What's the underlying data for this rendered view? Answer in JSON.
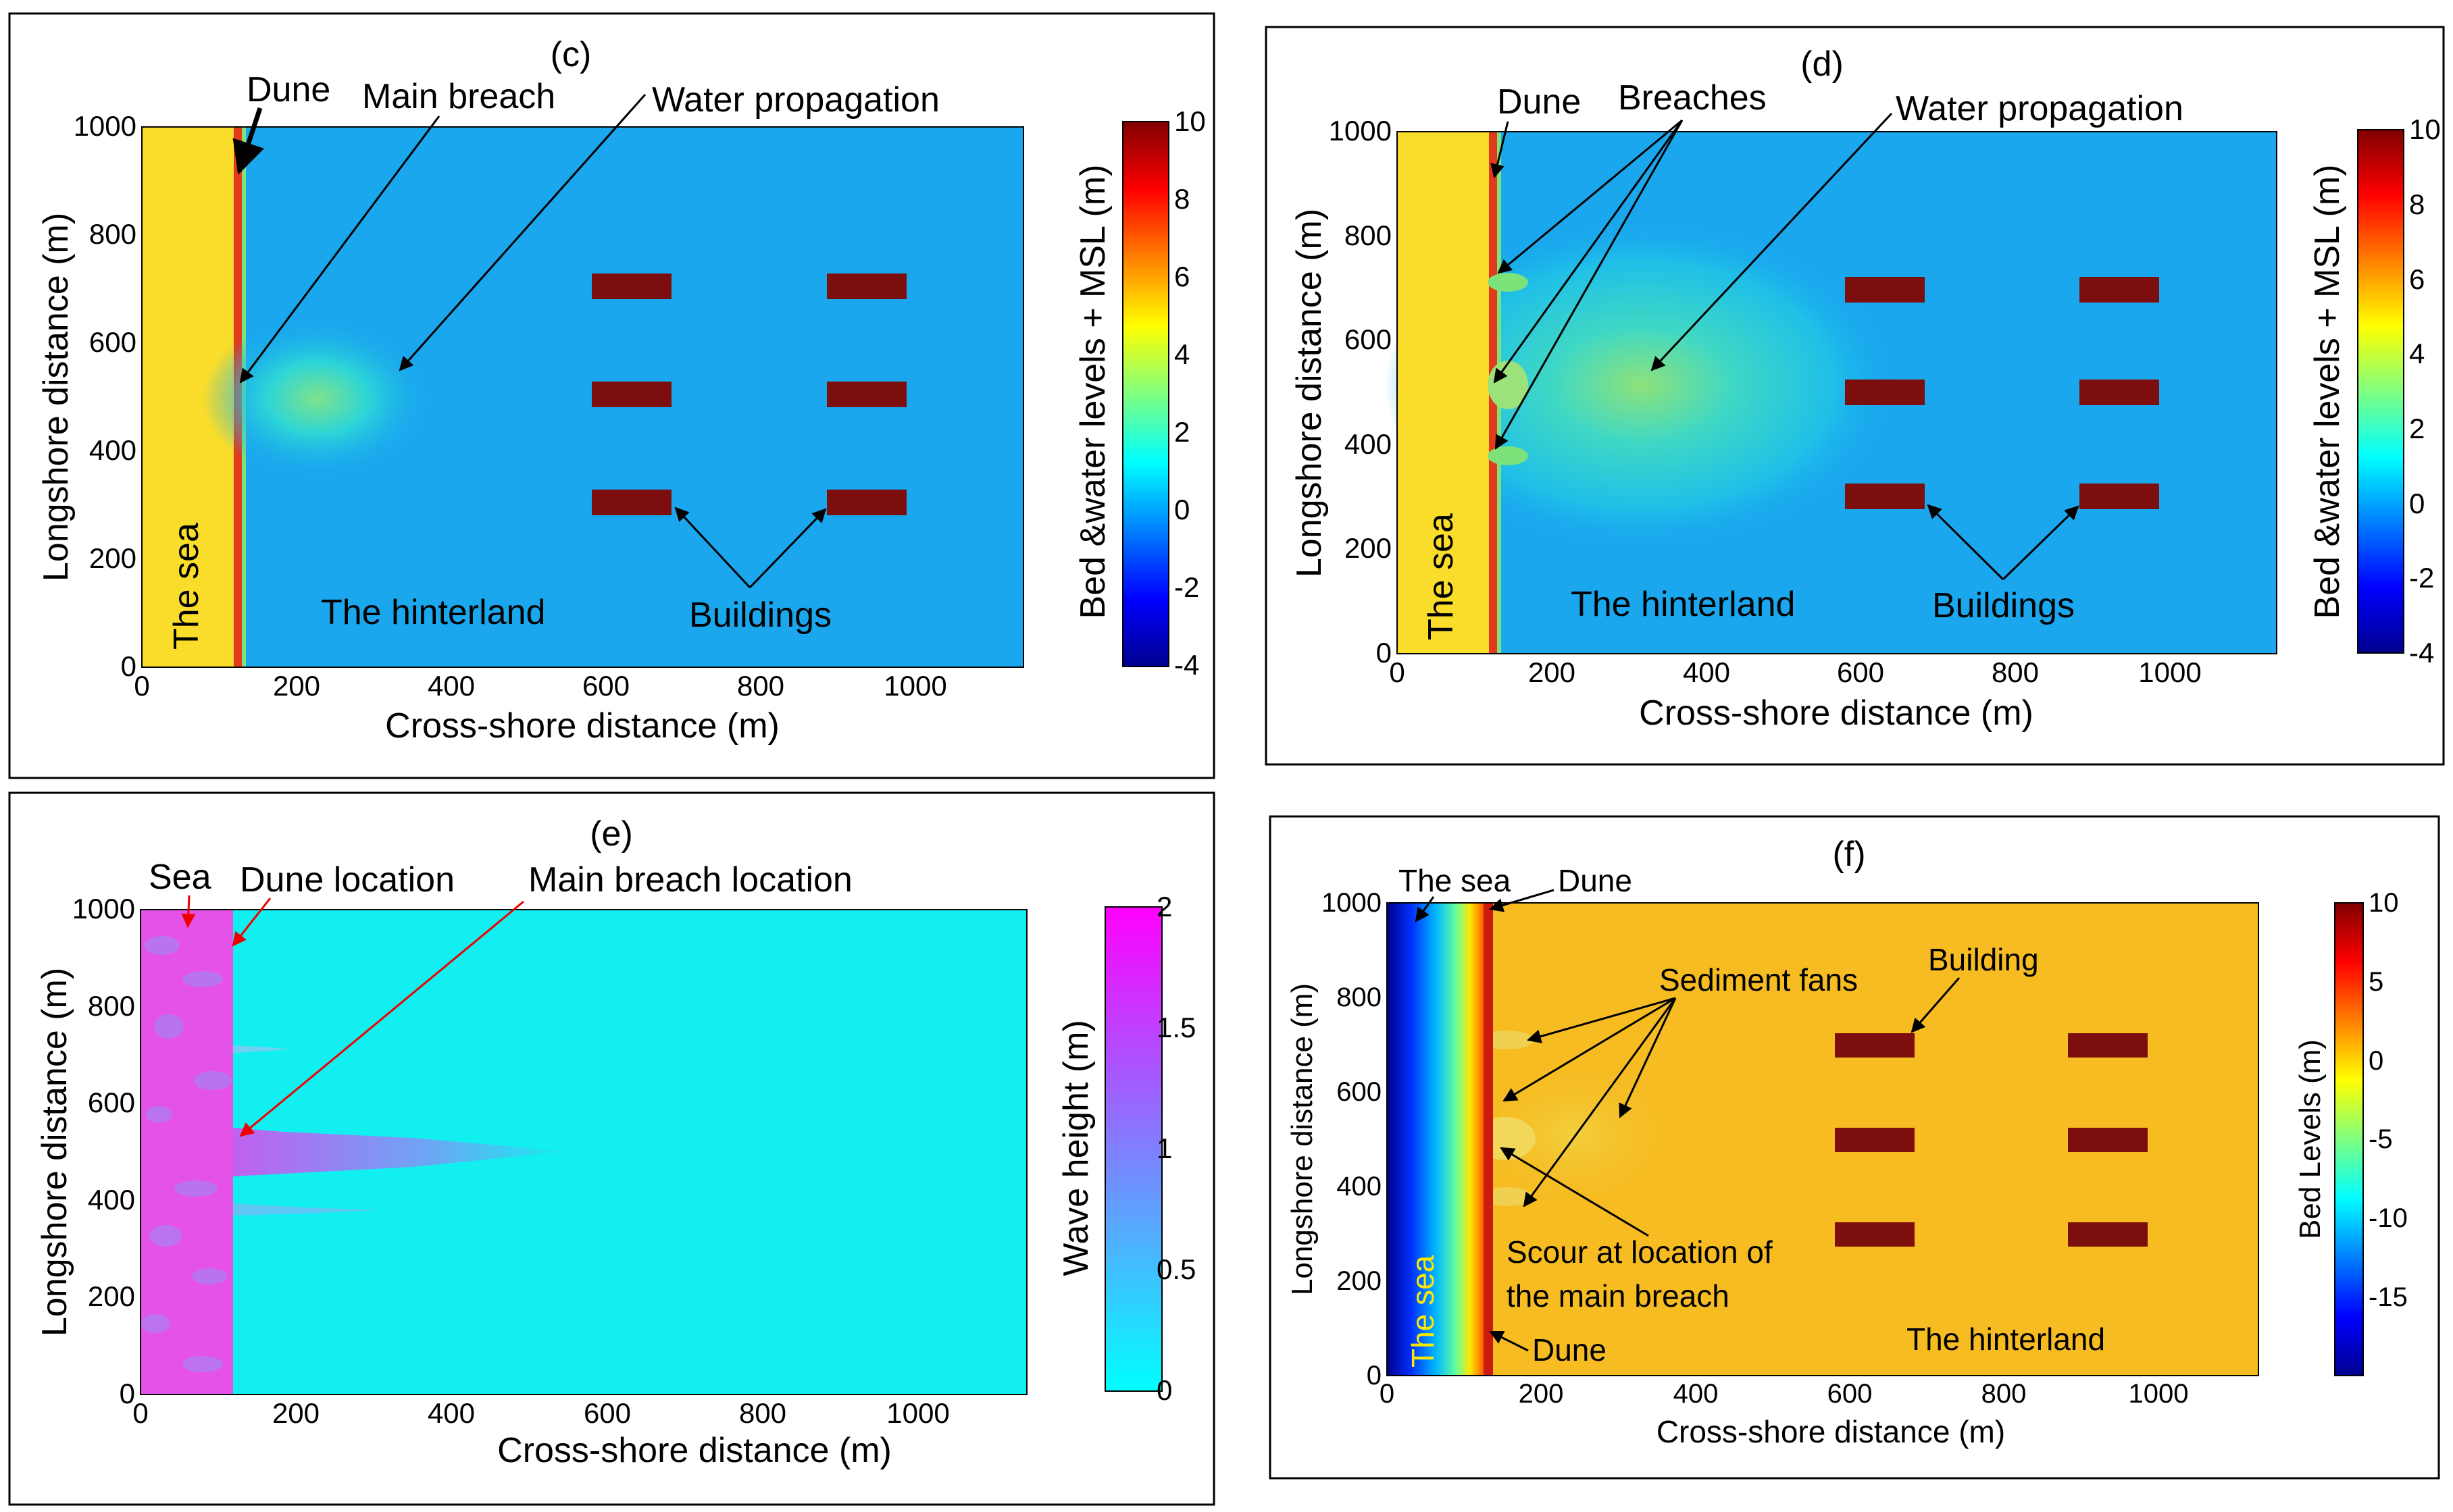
{
  "chart_data": [
    {
      "type": "heatmap",
      "panel": "(c)",
      "title": "(c)",
      "xlabel": "Cross-shore distance (m)",
      "ylabel": "Longshore distance (m)",
      "xlim": [
        0,
        1140
      ],
      "ylim": [
        0,
        1000
      ],
      "xticks": [
        "0",
        "200",
        "400",
        "600",
        "800",
        "1000"
      ],
      "yticks": [
        "0",
        "200",
        "400",
        "600",
        "800",
        "1000"
      ],
      "colorbar": {
        "label": "Bed &water levels + MSL (m)",
        "min": -4,
        "max": 10,
        "ticks": [
          "10",
          "8",
          "6",
          "4",
          "2",
          "0",
          "-2",
          "-4"
        ]
      },
      "annotations": {
        "dune": "Dune",
        "breach": "Main breach",
        "water": "Water propagation",
        "hinterland": "The hinterland",
        "buildings": "Buildings",
        "sea": "The sea"
      }
    },
    {
      "type": "heatmap",
      "panel": "(d)",
      "title": "(d)",
      "xlabel": "Cross-shore distance (m)",
      "ylabel": "Longshore distance (m)",
      "xlim": [
        0,
        1140
      ],
      "ylim": [
        0,
        1000
      ],
      "xticks": [
        "0",
        "200",
        "400",
        "600",
        "800",
        "1000"
      ],
      "yticks": [
        "0",
        "200",
        "400",
        "600",
        "800",
        "1000"
      ],
      "colorbar": {
        "label": "Bed &water levels + MSL (m)",
        "min": -4,
        "max": 10,
        "ticks": [
          "10",
          "8",
          "6",
          "4",
          "2",
          "0",
          "-2",
          "-4"
        ]
      },
      "annotations": {
        "dune": "Dune",
        "breach": "Breaches",
        "water": "Water propagation",
        "hinterland": "The hinterland",
        "buildings": "Buildings",
        "sea": "The sea"
      }
    },
    {
      "type": "heatmap",
      "panel": "(e)",
      "title": "(e)",
      "xlabel": "Cross-shore distance (m)",
      "ylabel": "Longshore distance (m)",
      "xlim": [
        0,
        1140
      ],
      "ylim": [
        0,
        1000
      ],
      "xticks": [
        "0",
        "200",
        "400",
        "600",
        "800",
        "1000"
      ],
      "yticks": [
        "0",
        "200",
        "400",
        "600",
        "800",
        "1000"
      ],
      "colorbar": {
        "label": "Wave height (m)",
        "min": 0,
        "max": 2,
        "ticks": [
          "2",
          "1.5",
          "1",
          "0.5",
          "0"
        ]
      },
      "annotations": {
        "sea": "Sea",
        "dune": "Dune location",
        "breach": "Main breach location"
      }
    },
    {
      "type": "heatmap",
      "panel": "(f)",
      "title": "(f)",
      "xlabel": "Cross-shore distance (m)",
      "ylabel": "Longshore distance (m)",
      "xlim": [
        0,
        1130
      ],
      "ylim": [
        0,
        1000
      ],
      "xticks": [
        "0",
        "200",
        "400",
        "600",
        "800",
        "1000"
      ],
      "yticks": [
        "0",
        "200",
        "400",
        "600",
        "800",
        "1000"
      ],
      "colorbar": {
        "label": "Bed Levels (m)",
        "min": -20,
        "max": 10,
        "ticks": [
          "10",
          "5",
          "0",
          "-5",
          "-10",
          "-15"
        ]
      },
      "annotations": {
        "sea_top": "The sea",
        "dune_top": "Dune",
        "fans": "Sediment fans",
        "building": "Building",
        "scour1": "Scour at location of",
        "scour2": "the  main breach",
        "dune_bottom": "Dune",
        "hinterland": "The hinterland",
        "sea": "The sea"
      }
    }
  ],
  "colors": {
    "sea_c": "#fadd2a",
    "sea_f": "#f3b91a",
    "dune": "#e23a1c",
    "water": "#1aa7ee",
    "wave_bg": "#12eff0",
    "wave_sea": "#e552e7",
    "building": "#7d0e0e",
    "hinterland_f": "#f6bc22"
  }
}
